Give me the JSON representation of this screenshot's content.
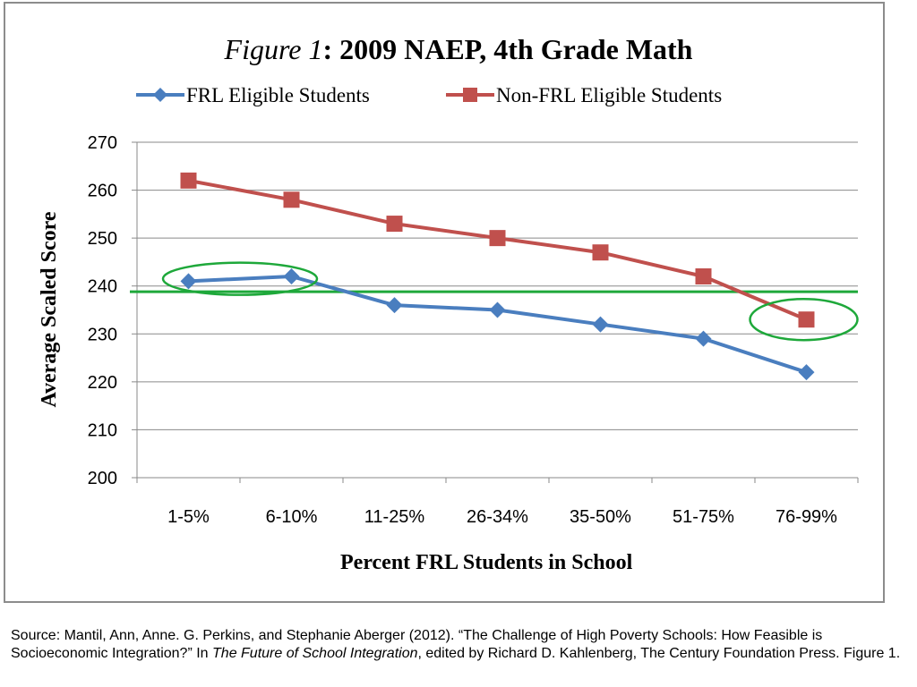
{
  "chart_data": {
    "type": "line",
    "title_italic": "Figure 1",
    "title_rest": ": 2009 NAEP, 4th Grade Math",
    "xlabel": "Percent FRL Students in School",
    "ylabel": "Average Scaled Score",
    "categories": [
      "1-5%",
      "6-10%",
      "11-25%",
      "26-34%",
      "35-50%",
      "51-75%",
      "76-99%"
    ],
    "ylim": [
      200,
      270
    ],
    "yticks": [
      200,
      210,
      220,
      230,
      240,
      250,
      260,
      270
    ],
    "grid": true,
    "legend_position": "top",
    "series": [
      {
        "name": "FRL Eligible Students",
        "values": [
          241,
          242,
          236,
          235,
          232,
          229,
          222
        ],
        "color": "#4a7ebf",
        "marker": "diamond"
      },
      {
        "name": "Non-FRL Eligible Students",
        "values": [
          262,
          258,
          253,
          250,
          247,
          242,
          233
        ],
        "color": "#c0504d",
        "marker": "square"
      }
    ],
    "annotations": {
      "reference_line": {
        "y": 238.8,
        "color": "#1ea83a"
      },
      "highlight_ellipses": [
        {
          "around": "FRL Eligible Students 1-5% to 6-10%",
          "color": "#1ea83a"
        },
        {
          "around": "Non-FRL Eligible Students 76-99%",
          "color": "#1ea83a"
        }
      ]
    }
  },
  "source": {
    "prefix": "Source: Mantil, Ann, Anne. G. Perkins, and Stephanie Aberger (2012). “The Challenge of High Poverty Schools: How Feasible is Socioeconomic Integration?” In ",
    "italic": "The Future of School Integration",
    "suffix": ", edited by Richard D. Kahlenberg, The Century Foundation Press. Figure 1."
  }
}
